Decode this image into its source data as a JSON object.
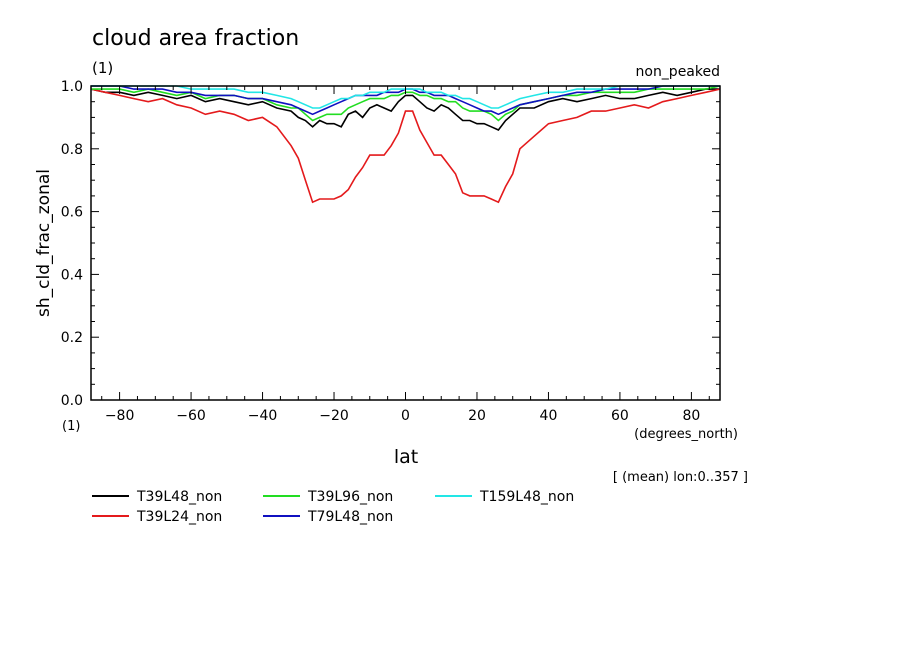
{
  "chart_data": {
    "type": "line",
    "title": "cloud area fraction",
    "subtitle": "(1)",
    "corner_label": "non_peaked",
    "xlabel": "lat",
    "xunits": "(degrees_north)",
    "ylabel": "sh_cld_frac_zonal",
    "yunits": "(1)",
    "note": "[ (mean) lon:0..357 ]",
    "xlim": [
      -88,
      88
    ],
    "ylim": [
      0,
      1
    ],
    "xticks": [
      -80,
      -60,
      -40,
      -20,
      0,
      20,
      40,
      60,
      80
    ],
    "yticks": [
      0.0,
      0.2,
      0.4,
      0.6,
      0.8,
      1.0
    ],
    "x": [
      -88,
      -84,
      -80,
      -76,
      -72,
      -68,
      -64,
      -60,
      -56,
      -52,
      -48,
      -44,
      -40,
      -36,
      -32,
      -30,
      -28,
      -26,
      -24,
      -22,
      -20,
      -18,
      -16,
      -14,
      -12,
      -10,
      -8,
      -6,
      -4,
      -2,
      0,
      2,
      4,
      6,
      8,
      10,
      12,
      14,
      16,
      18,
      20,
      22,
      24,
      26,
      28,
      30,
      32,
      36,
      40,
      44,
      48,
      52,
      56,
      60,
      64,
      68,
      72,
      76,
      80,
      84,
      88
    ],
    "series": [
      {
        "name": "T39L48_non",
        "color": "#000000",
        "values": [
          0.99,
          0.98,
          0.98,
          0.97,
          0.98,
          0.97,
          0.96,
          0.97,
          0.95,
          0.96,
          0.95,
          0.94,
          0.95,
          0.93,
          0.92,
          0.9,
          0.89,
          0.87,
          0.89,
          0.88,
          0.88,
          0.87,
          0.91,
          0.92,
          0.9,
          0.93,
          0.94,
          0.93,
          0.92,
          0.95,
          0.97,
          0.97,
          0.95,
          0.93,
          0.92,
          0.94,
          0.93,
          0.91,
          0.89,
          0.89,
          0.88,
          0.88,
          0.87,
          0.86,
          0.89,
          0.91,
          0.93,
          0.93,
          0.95,
          0.96,
          0.95,
          0.96,
          0.97,
          0.96,
          0.96,
          0.97,
          0.98,
          0.97,
          0.98,
          0.99,
          0.99
        ]
      },
      {
        "name": "T39L24_non",
        "color": "#e41a1c",
        "values": [
          0.99,
          0.98,
          0.97,
          0.96,
          0.95,
          0.96,
          0.94,
          0.93,
          0.91,
          0.92,
          0.91,
          0.89,
          0.9,
          0.87,
          0.81,
          0.77,
          0.7,
          0.63,
          0.64,
          0.64,
          0.64,
          0.65,
          0.67,
          0.71,
          0.74,
          0.78,
          0.78,
          0.78,
          0.81,
          0.85,
          0.92,
          0.92,
          0.86,
          0.82,
          0.78,
          0.78,
          0.75,
          0.72,
          0.66,
          0.65,
          0.65,
          0.65,
          0.64,
          0.63,
          0.68,
          0.72,
          0.8,
          0.84,
          0.88,
          0.89,
          0.9,
          0.92,
          0.92,
          0.93,
          0.94,
          0.93,
          0.95,
          0.96,
          0.97,
          0.98,
          0.99
        ]
      },
      {
        "name": "T39L96_non",
        "color": "#22dd22",
        "values": [
          0.99,
          0.99,
          0.99,
          0.98,
          0.99,
          0.98,
          0.97,
          0.98,
          0.96,
          0.97,
          0.97,
          0.96,
          0.96,
          0.94,
          0.93,
          0.93,
          0.91,
          0.89,
          0.9,
          0.91,
          0.91,
          0.91,
          0.93,
          0.94,
          0.95,
          0.96,
          0.96,
          0.96,
          0.97,
          0.97,
          0.98,
          0.98,
          0.97,
          0.97,
          0.96,
          0.96,
          0.95,
          0.95,
          0.93,
          0.92,
          0.92,
          0.92,
          0.91,
          0.89,
          0.91,
          0.92,
          0.94,
          0.95,
          0.96,
          0.97,
          0.97,
          0.98,
          0.98,
          0.98,
          0.98,
          0.99,
          0.99,
          0.99,
          0.99,
          0.99,
          1.0
        ]
      },
      {
        "name": "T79L48_non",
        "color": "#1010c0",
        "values": [
          1.0,
          1.0,
          1.0,
          0.99,
          0.99,
          0.99,
          0.98,
          0.98,
          0.97,
          0.97,
          0.97,
          0.96,
          0.96,
          0.95,
          0.94,
          0.93,
          0.92,
          0.91,
          0.92,
          0.93,
          0.94,
          0.95,
          0.96,
          0.97,
          0.97,
          0.97,
          0.97,
          0.98,
          0.98,
          0.98,
          0.99,
          0.99,
          0.98,
          0.98,
          0.97,
          0.97,
          0.97,
          0.96,
          0.95,
          0.94,
          0.93,
          0.92,
          0.92,
          0.91,
          0.92,
          0.93,
          0.94,
          0.95,
          0.96,
          0.97,
          0.98,
          0.98,
          0.99,
          0.99,
          0.99,
          0.99,
          1.0,
          1.0,
          1.0,
          1.0,
          1.0
        ]
      },
      {
        "name": "T159L48_non",
        "color": "#22e6e6",
        "values": [
          1.0,
          1.0,
          1.0,
          1.0,
          1.0,
          1.0,
          1.0,
          0.99,
          0.99,
          0.99,
          0.99,
          0.98,
          0.98,
          0.97,
          0.96,
          0.95,
          0.94,
          0.93,
          0.93,
          0.94,
          0.95,
          0.96,
          0.96,
          0.97,
          0.97,
          0.98,
          0.98,
          0.98,
          0.99,
          0.99,
          0.99,
          0.99,
          0.99,
          0.98,
          0.98,
          0.98,
          0.97,
          0.97,
          0.96,
          0.96,
          0.95,
          0.94,
          0.93,
          0.93,
          0.94,
          0.95,
          0.96,
          0.97,
          0.98,
          0.98,
          0.99,
          0.99,
          0.99,
          1.0,
          1.0,
          1.0,
          1.0,
          1.0,
          1.0,
          1.0,
          1.0
        ]
      }
    ]
  }
}
